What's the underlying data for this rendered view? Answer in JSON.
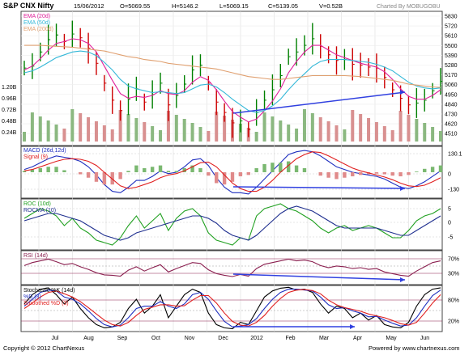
{
  "header": {
    "title": "S&P CNX Nifty",
    "date": "15/06/2012",
    "open": "O=5069.55",
    "high": "H=5146.2",
    "low": "L=5069.15",
    "close": "C=5139.05",
    "volume": "V=0.52B",
    "credit": "Charted By MOBUGOBU"
  },
  "footer": {
    "copyright": "Copyright © 2012 ChartNexus",
    "powered": "Powered by www.chartnexus.com"
  },
  "colors": {
    "price_up": "#008000",
    "price_down": "#cc0000",
    "ema20": "#e0209a",
    "ema50": "#34b8d8",
    "ema200": "#e0a070",
    "macd": "#1f2fbf",
    "signal": "#e01f1f",
    "roc": "#20a020",
    "rocma": "#1f2f8f",
    "rsi": "#8a1f4f",
    "trendline": "#3040e0",
    "panel_border": "#333333",
    "vol": "#7aa86a"
  },
  "x_axis": {
    "labels": [
      "Jul",
      "Aug",
      "Sep",
      "Oct",
      "Nov",
      "Dec",
      "2012",
      "Feb",
      "Mar",
      "Apr",
      "May",
      "Jun"
    ]
  },
  "panels": {
    "price": {
      "legend": [
        "EMA (20d)",
        "EMA (50d)",
        "EMA (200d)"
      ],
      "y_ticks": [
        "5830",
        "5720",
        "5610",
        "5500",
        "5390",
        "5280",
        "5170",
        "5060",
        "4950",
        "4840",
        "4730",
        "4620",
        "4510"
      ],
      "vol_ticks": [
        "1.20B",
        "0.96B",
        "0.72B",
        "0.48B",
        "0.24B"
      ]
    },
    "macd": {
      "legend": [
        "MACD (26d,12d)",
        "Signal (9)"
      ],
      "y_ticks": [
        "130.1",
        "0",
        "-130"
      ]
    },
    "roc": {
      "legend": [
        "ROC (10d)",
        "ROCMA (10)"
      ],
      "y_ticks": [
        "5",
        "0",
        "-5"
      ]
    },
    "rsi": {
      "legend": [
        "RSI (14d)"
      ],
      "y_ticks": [
        "70%",
        "30%"
      ]
    },
    "stoch": {
      "legend": [
        "Stochastic %K (14d)",
        "%D (3)",
        "Smoothed %D (3)"
      ],
      "y_ticks": [
        "80%",
        "20%"
      ]
    }
  },
  "chart_data": [
    {
      "type": "line",
      "title": "S&P CNX Nifty",
      "series": [
        {
          "name": "Close",
          "values": [
            5280,
            5300,
            5450,
            5580,
            5630,
            5560,
            5640,
            5600,
            5490,
            5330,
            5120,
            4940,
            4830,
            4950,
            5060,
            4920,
            5000,
            5120,
            4890,
            4990,
            5110,
            5260,
            5310,
            5120,
            4920,
            4810,
            4700,
            4720,
            4630,
            4810,
            4940,
            5050,
            5200,
            5400,
            5450,
            5520,
            5590,
            5510,
            5420,
            5360,
            5370,
            5320,
            5310,
            5290,
            5280,
            5180,
            5050,
            4960,
            4890,
            4910,
            4940,
            5040,
            5139.05
          ]
        },
        {
          "name": "EMA (20d)",
          "values": [
            5260,
            5300,
            5380,
            5470,
            5540,
            5560,
            5590,
            5580,
            5540,
            5450,
            5300,
            5150,
            5010,
            4960,
            4980,
            4970,
            4990,
            5040,
            5010,
            5000,
            5040,
            5130,
            5190,
            5150,
            5050,
            4930,
            4820,
            4760,
            4710,
            4740,
            4830,
            4930,
            5060,
            5230,
            5350,
            5450,
            5520,
            5520,
            5470,
            5420,
            5390,
            5360,
            5330,
            5310,
            5290,
            5240,
            5160,
            5060,
            4980,
            4950,
            4950,
            4990,
            5050
          ]
        },
        {
          "name": "EMA (50d)",
          "values": [
            5230,
            5250,
            5290,
            5340,
            5390,
            5420,
            5450,
            5460,
            5450,
            5410,
            5340,
            5260,
            5160,
            5090,
            5060,
            5040,
            5020,
            5030,
            5020,
            5010,
            5020,
            5060,
            5100,
            5110,
            5080,
            5020,
            4950,
            4890,
            4830,
            4810,
            4830,
            4880,
            4950,
            5050,
            5140,
            5220,
            5300,
            5350,
            5370,
            5370,
            5370,
            5360,
            5350,
            5340,
            5320,
            5290,
            5250,
            5190,
            5130,
            5090,
            5070,
            5060,
            5070
          ]
        },
        {
          "name": "EMA (200d)",
          "values": [
            5520,
            5520,
            5520,
            5515,
            5510,
            5505,
            5500,
            5490,
            5480,
            5470,
            5460,
            5440,
            5420,
            5400,
            5390,
            5370,
            5360,
            5350,
            5330,
            5320,
            5310,
            5300,
            5290,
            5280,
            5270,
            5250,
            5230,
            5210,
            5190,
            5180,
            5170,
            5160,
            5160,
            5170,
            5180,
            5190,
            5200,
            5200,
            5200,
            5200,
            5200,
            5195,
            5190,
            5180,
            5170,
            5160,
            5150,
            5130,
            5110,
            5100,
            5090,
            5080,
            5075
          ]
        }
      ],
      "ylim": [
        4460,
        5880
      ]
    },
    {
      "type": "line",
      "title": "MACD (26d,12d)",
      "series": [
        {
          "name": "MACD (26d,12d)",
          "values": [
            20,
            40,
            70,
            100,
            120,
            110,
            100,
            80,
            40,
            -20,
            -90,
            -140,
            -150,
            -110,
            -60,
            -60,
            -30,
            10,
            -10,
            0,
            40,
            90,
            100,
            50,
            -40,
            -110,
            -150,
            -150,
            -160,
            -110,
            -50,
            10,
            70,
            130,
            150,
            160,
            150,
            120,
            80,
            40,
            20,
            0,
            -10,
            -20,
            -30,
            -50,
            -80,
            -110,
            -120,
            -100,
            -70,
            -30,
            10
          ]
        },
        {
          "name": "Signal (9)",
          "values": [
            10,
            20,
            40,
            60,
            80,
            95,
            100,
            95,
            80,
            50,
            0,
            -50,
            -100,
            -120,
            -110,
            -90,
            -70,
            -40,
            -20,
            -10,
            10,
            40,
            70,
            75,
            40,
            -20,
            -80,
            -120,
            -140,
            -140,
            -110,
            -60,
            0,
            50,
            100,
            130,
            150,
            145,
            120,
            90,
            60,
            30,
            10,
            -5,
            -20,
            -35,
            -55,
            -80,
            -100,
            -105,
            -95,
            -70,
            -40
          ]
        }
      ],
      "ylim": [
        -190,
        190
      ]
    },
    {
      "type": "line",
      "title": "ROC (10d)",
      "series": [
        {
          "name": "ROC (10d)",
          "values": [
            2,
            4,
            6,
            5,
            3,
            -1,
            2,
            -2,
            -4,
            -7,
            -8,
            -9,
            -6,
            -1,
            3,
            -2,
            1,
            4,
            -3,
            2,
            5,
            6,
            3,
            -4,
            -7,
            -8,
            -9,
            -6,
            -7,
            3,
            6,
            7,
            8,
            6,
            5,
            3,
            1,
            -2,
            -4,
            -2,
            -1,
            -3,
            -2,
            -1,
            -2,
            -4,
            -6,
            -6,
            -3,
            1,
            3,
            4,
            6
          ]
        },
        {
          "name": "ROCMA (10)",
          "values": [
            1,
            2,
            3,
            4,
            4,
            3,
            2,
            1,
            -1,
            -3,
            -5,
            -6,
            -7,
            -6,
            -4,
            -3,
            -2,
            -1,
            0,
            1,
            2,
            3,
            3,
            2,
            0,
            -3,
            -5,
            -6,
            -7,
            -5,
            -2,
            1,
            4,
            6,
            7,
            6,
            5,
            3,
            1,
            -1,
            -2,
            -2,
            -2,
            -2,
            -2,
            -3,
            -4,
            -5,
            -5,
            -3,
            -1,
            1,
            3
          ]
        }
      ],
      "ylim": [
        -11,
        10
      ]
    },
    {
      "type": "line",
      "title": "RSI (14d)",
      "series": [
        {
          "name": "RSI (14d)",
          "values": [
            55,
            62,
            66,
            70,
            64,
            57,
            60,
            52,
            46,
            38,
            33,
            32,
            30,
            44,
            52,
            42,
            50,
            57,
            40,
            48,
            55,
            62,
            60,
            45,
            36,
            32,
            29,
            34,
            30,
            48,
            58,
            62,
            66,
            70,
            66,
            68,
            64,
            55,
            50,
            54,
            52,
            48,
            50,
            46,
            48,
            40,
            36,
            32,
            30,
            42,
            52,
            62,
            66
          ]
        }
      ],
      "ylim": [
        10,
        90
      ]
    },
    {
      "type": "line",
      "title": "Stochastic %K (14d)",
      "series": [
        {
          "name": "Stochastic %K (14d)",
          "values": [
            60,
            80,
            92,
            95,
            80,
            60,
            75,
            50,
            30,
            15,
            8,
            10,
            20,
            50,
            70,
            40,
            55,
            80,
            30,
            55,
            80,
            92,
            85,
            40,
            15,
            8,
            6,
            20,
            15,
            45,
            75,
            88,
            94,
            96,
            90,
            92,
            85,
            60,
            40,
            55,
            50,
            30,
            40,
            25,
            35,
            15,
            10,
            8,
            20,
            55,
            80,
            92,
            95
          ]
        },
        {
          "name": "%D (3)",
          "values": [
            55,
            70,
            85,
            90,
            88,
            75,
            70,
            60,
            45,
            28,
            15,
            10,
            14,
            30,
            50,
            55,
            55,
            65,
            55,
            50,
            60,
            80,
            85,
            70,
            45,
            22,
            10,
            12,
            15,
            28,
            50,
            70,
            85,
            92,
            92,
            90,
            88,
            75,
            58,
            50,
            52,
            45,
            40,
            32,
            33,
            25,
            18,
            12,
            14,
            30,
            55,
            78,
            90
          ]
        },
        {
          "name": "Smoothed %D (3)",
          "values": [
            50,
            62,
            75,
            85,
            88,
            82,
            75,
            65,
            52,
            38,
            25,
            15,
            12,
            20,
            35,
            48,
            53,
            58,
            58,
            55,
            56,
            68,
            78,
            78,
            62,
            40,
            22,
            14,
            12,
            20,
            35,
            55,
            72,
            85,
            90,
            91,
            89,
            82,
            68,
            58,
            52,
            48,
            44,
            38,
            34,
            30,
            24,
            17,
            14,
            20,
            40,
            62,
            80
          ]
        }
      ],
      "ylim": [
        0,
        100
      ]
    }
  ]
}
